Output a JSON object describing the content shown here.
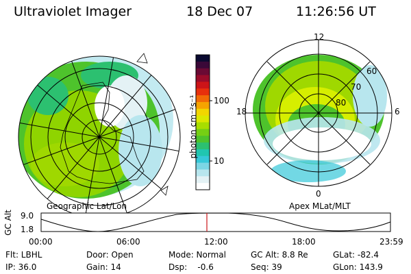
{
  "header": {
    "instrument": "Ultraviolet Imager",
    "date": "18 Dec 07",
    "time": "11:26:56 UT"
  },
  "geo_panel": {
    "label": "Geographic Lat/Lon"
  },
  "apex_panel": {
    "label": "Apex MLat/MLT",
    "mlt_labels": {
      "top": "12",
      "left": "18",
      "right": "6",
      "bottom": "0"
    },
    "lat_labels": [
      "60",
      "70",
      "80"
    ]
  },
  "colorbar": {
    "unit_label": "photon cm⁻²s⁻¹",
    "tick_labels": [
      "100",
      "10"
    ],
    "colors_top_to_bottom": [
      "#0a0a30",
      "#3a0838",
      "#6a0a34",
      "#9a0c2a",
      "#cc1418",
      "#e8300c",
      "#f26a06",
      "#f6a400",
      "#f2d600",
      "#dce800",
      "#a8de00",
      "#76cf14",
      "#4ec32c",
      "#2cc070",
      "#20c6b0",
      "#36c8d8",
      "#7cd6e4",
      "#b8e6ee",
      "#e4f2f5",
      "#ffffff"
    ]
  },
  "altitude_strip": {
    "axis_title": "GC Alt",
    "y_ticks": [
      "9.0",
      "1.8"
    ],
    "x_ticks": [
      "00:00",
      "06:00",
      "12:00",
      "18:00",
      "23:59"
    ],
    "current_time_marker": "11:27"
  },
  "footer": {
    "row1": [
      "Flt: LBHL",
      "Door: Open",
      "Mode: Normal",
      "GC Alt: 8.8 Re",
      "GLat: -82.4"
    ],
    "row2": [
      "IP: 36.0",
      "Gain: 14",
      "Dsp:    -0.6",
      "Seq: 39",
      "GLon: 143.9"
    ]
  },
  "colors": {
    "aurora_green": "#4ec32c",
    "marker_red": "#cc1418"
  }
}
